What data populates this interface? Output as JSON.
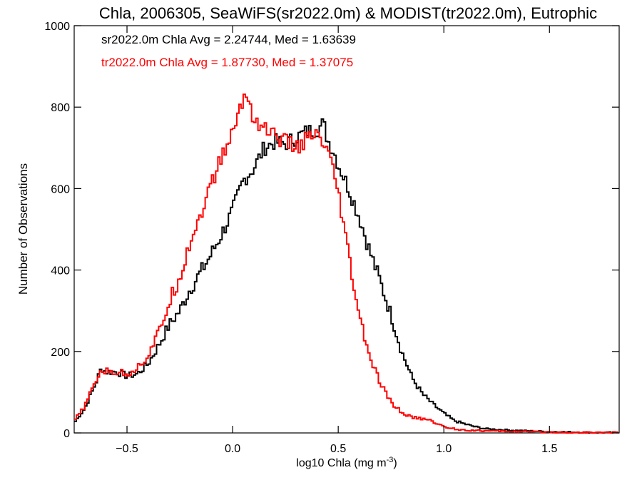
{
  "chart_data": {
    "type": "line",
    "title": "Chla, 2006305, SeaWiFS(sr2022.0m) & MODIST(tr2022.0m), Eutrophic",
    "xlabel": "log10 Chla (mg m",
    "xlabel_sup": "-3",
    "xlabel_tail": ")",
    "ylabel": "Number of Observations",
    "xlim": [
      -0.75,
      1.83
    ],
    "ylim": [
      0,
      1000
    ],
    "x_ticks": [
      -0.5,
      0.0,
      0.5,
      1.0,
      1.5
    ],
    "x_tick_labels": [
      "−0.5",
      "0.0",
      "0.5",
      "1.0",
      "1.5"
    ],
    "y_ticks": [
      0,
      200,
      400,
      600,
      800,
      1000
    ],
    "y_tick_labels": [
      "0",
      "200",
      "400",
      "600",
      "800",
      "1000"
    ],
    "grid": false,
    "annotations": [
      {
        "text": "sr2022.0m Chla Avg = 2.24744, Med = 1.63639",
        "color": "#000000"
      },
      {
        "text": "tr2022.0m Chla Avg = 1.87730, Med = 1.37075",
        "color": "#ff0000"
      }
    ],
    "series": [
      {
        "color": "#000000",
        "points": [
          [
            -0.75,
            25
          ],
          [
            -0.7,
            60
          ],
          [
            -0.65,
            120
          ],
          [
            -0.62,
            160
          ],
          [
            -0.6,
            150
          ],
          [
            -0.55,
            150
          ],
          [
            -0.5,
            140
          ],
          [
            -0.45,
            145
          ],
          [
            -0.4,
            170
          ],
          [
            -0.35,
            215
          ],
          [
            -0.3,
            265
          ],
          [
            -0.25,
            300
          ],
          [
            -0.2,
            355
          ],
          [
            -0.15,
            395
          ],
          [
            -0.1,
            440
          ],
          [
            -0.05,
            490
          ],
          [
            0.0,
            545
          ],
          [
            0.05,
            620
          ],
          [
            0.1,
            650
          ],
          [
            0.15,
            700
          ],
          [
            0.2,
            715
          ],
          [
            0.25,
            710
          ],
          [
            0.3,
            725
          ],
          [
            0.35,
            740
          ],
          [
            0.4,
            745
          ],
          [
            0.43,
            760
          ],
          [
            0.45,
            720
          ],
          [
            0.48,
            690
          ],
          [
            0.5,
            660
          ],
          [
            0.55,
            600
          ],
          [
            0.6,
            530
          ],
          [
            0.65,
            445
          ],
          [
            0.7,
            370
          ],
          [
            0.75,
            290
          ],
          [
            0.8,
            200
          ],
          [
            0.85,
            135
          ],
          [
            0.9,
            95
          ],
          [
            0.95,
            70
          ],
          [
            1.0,
            48
          ],
          [
            1.05,
            30
          ],
          [
            1.1,
            22
          ],
          [
            1.15,
            15
          ],
          [
            1.2,
            10
          ],
          [
            1.3,
            7
          ],
          [
            1.4,
            5
          ],
          [
            1.5,
            3
          ],
          [
            1.6,
            2
          ],
          [
            1.7,
            1
          ],
          [
            1.83,
            1
          ]
        ]
      },
      {
        "color": "#ff0000",
        "points": [
          [
            -0.75,
            30
          ],
          [
            -0.7,
            65
          ],
          [
            -0.65,
            125
          ],
          [
            -0.62,
            155
          ],
          [
            -0.6,
            150
          ],
          [
            -0.55,
            150
          ],
          [
            -0.5,
            145
          ],
          [
            -0.45,
            160
          ],
          [
            -0.4,
            190
          ],
          [
            -0.35,
            245
          ],
          [
            -0.3,
            320
          ],
          [
            -0.25,
            385
          ],
          [
            -0.2,
            470
          ],
          [
            -0.15,
            540
          ],
          [
            -0.1,
            610
          ],
          [
            -0.05,
            680
          ],
          [
            0.0,
            735
          ],
          [
            0.03,
            790
          ],
          [
            0.06,
            830
          ],
          [
            0.08,
            815
          ],
          [
            0.1,
            770
          ],
          [
            0.15,
            750
          ],
          [
            0.2,
            730
          ],
          [
            0.25,
            715
          ],
          [
            0.3,
            700
          ],
          [
            0.35,
            720
          ],
          [
            0.4,
            730
          ],
          [
            0.45,
            690
          ],
          [
            0.5,
            590
          ],
          [
            0.55,
            430
          ],
          [
            0.6,
            285
          ],
          [
            0.65,
            185
          ],
          [
            0.7,
            120
          ],
          [
            0.75,
            75
          ],
          [
            0.8,
            50
          ],
          [
            0.85,
            38
          ],
          [
            0.9,
            35
          ],
          [
            0.95,
            28
          ],
          [
            1.0,
            15
          ],
          [
            1.05,
            10
          ],
          [
            1.1,
            7
          ],
          [
            1.2,
            5
          ],
          [
            1.3,
            4
          ],
          [
            1.4,
            3
          ],
          [
            1.5,
            2
          ],
          [
            1.6,
            1
          ],
          [
            1.83,
            1
          ]
        ]
      }
    ]
  }
}
